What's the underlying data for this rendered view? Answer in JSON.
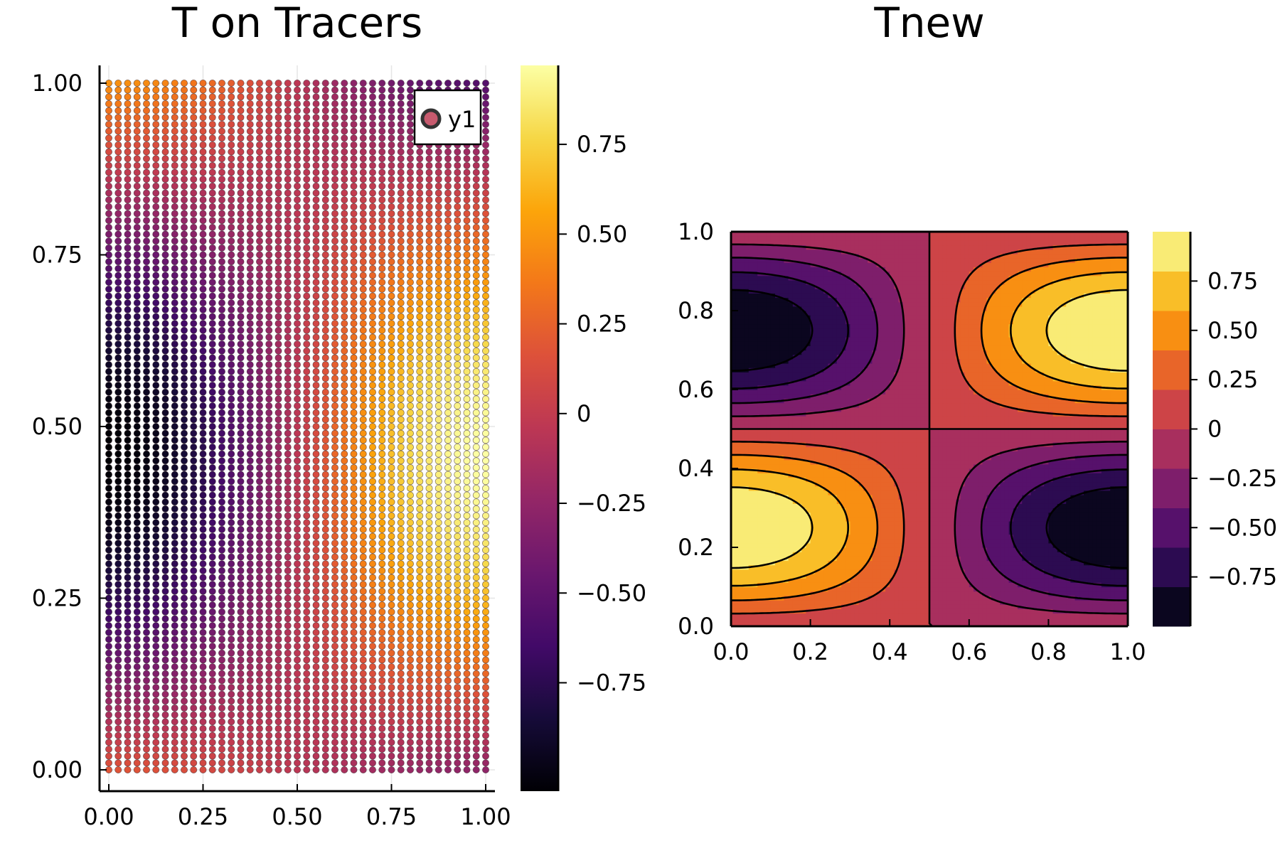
{
  "chart_data": [
    {
      "type": "scatter",
      "title": "T on Tracers",
      "xlabel": "",
      "ylabel": "",
      "xlim": [
        0,
        1
      ],
      "ylim": [
        0,
        1
      ],
      "x_ticks": [
        "0.00",
        "0.25",
        "0.50",
        "0.75",
        "1.00"
      ],
      "y_ticks": [
        "0.00",
        "0.25",
        "0.50",
        "0.75",
        "1.00"
      ],
      "tick_values": [
        0,
        0.25,
        0.5,
        0.75,
        1
      ],
      "grid": true,
      "legend": {
        "entries": [
          "y1"
        ],
        "placement": "top-right"
      },
      "marker_color_field": "T = -sin(pi*x)*... sampled on tracer grid",
      "tracer_grid": {
        "nx": 41,
        "ny": 101,
        "x_range": [
          0,
          1
        ],
        "y_range": [
          0,
          1
        ]
      },
      "colormap": "inferno",
      "colorbar": {
        "range": [
          -1,
          1
        ],
        "ticks": [
          0.75,
          0.5,
          0.25,
          0,
          -0.25,
          -0.5,
          -0.75
        ],
        "tick_labels": [
          "0.75",
          "0.50",
          "0.25",
          "0",
          "−0.25",
          "−0.50",
          "−0.75"
        ]
      }
    },
    {
      "type": "heatmap",
      "subtype": "filled-contour",
      "title": "Tnew",
      "xlabel": "",
      "ylabel": "",
      "xlim": [
        0,
        1
      ],
      "ylim": [
        0,
        1
      ],
      "x_ticks": [
        "0.0",
        "0.2",
        "0.4",
        "0.6",
        "0.8",
        "1.0"
      ],
      "y_ticks": [
        "0.0",
        "0.2",
        "0.4",
        "0.6",
        "0.8",
        "1.0"
      ],
      "tick_values": [
        0,
        0.2,
        0.4,
        0.6,
        0.8,
        1.0
      ],
      "grid": false,
      "field": "T = cos(pi*x) * sin(2*pi*y)",
      "contour_levels": [
        -1,
        -0.8,
        -0.6,
        -0.4,
        -0.2,
        0,
        0.2,
        0.4,
        0.6,
        0.8,
        1
      ],
      "colormap": "inferno",
      "colorbar": {
        "range": [
          -1,
          1
        ],
        "ticks": [
          0.75,
          0.5,
          0.25,
          0,
          -0.25,
          -0.5,
          -0.75
        ],
        "tick_labels": [
          "0.75",
          "0.50",
          "0.25",
          "0",
          "−0.25",
          "−0.50",
          "−0.75"
        ]
      }
    }
  ]
}
